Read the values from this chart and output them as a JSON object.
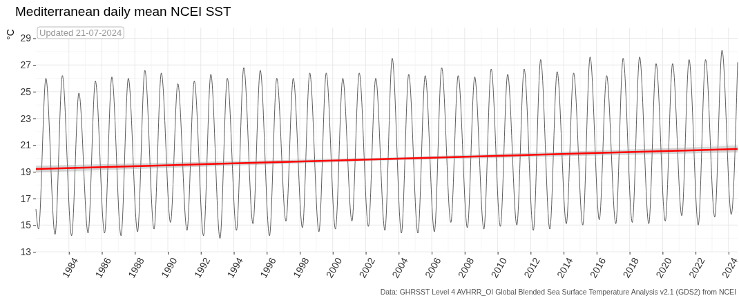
{
  "chart_data": {
    "type": "line",
    "title": "Mediterranean daily mean NCEI SST",
    "ylabel": "°C",
    "annotations": [
      "Updated 21-07-2024",
      "Data: GHRSST Level 4 AVHRR_OI Global Blended Sea Surface Temperature Analysis v2.1 (GDS2) from NCEI"
    ],
    "xlim": [
      "1982-01-01",
      "2024-07-20"
    ],
    "ylim": [
      13,
      29.8
    ],
    "xticks": [
      "1984",
      "1986",
      "1988",
      "1990",
      "1992",
      "1994",
      "1996",
      "1998",
      "2000",
      "2002",
      "2004",
      "2006",
      "2008",
      "2010",
      "2012",
      "2014",
      "2016",
      "2018",
      "2020",
      "2022",
      "2024"
    ],
    "yticks": [
      13,
      15,
      17,
      19,
      21,
      23,
      25,
      27,
      29
    ],
    "grid": true,
    "series": [
      {
        "color": "#333333",
        "x": [
          "1982-01-01",
          "1982-03-01",
          "1982-08-10",
          "1983-03-01",
          "1983-08-10",
          "1984-03-01",
          "1984-08-10",
          "1985-03-01",
          "1985-08-10",
          "1986-03-01",
          "1986-08-10",
          "1987-03-01",
          "1987-08-10",
          "1988-03-01",
          "1988-08-10",
          "1989-03-01",
          "1989-08-10",
          "1990-03-01",
          "1990-08-10",
          "1991-03-01",
          "1991-08-10",
          "1992-03-01",
          "1992-08-10",
          "1993-03-01",
          "1993-08-10",
          "1994-03-01",
          "1994-08-10",
          "1995-03-01",
          "1995-08-10",
          "1996-03-01",
          "1996-08-10",
          "1997-03-01",
          "1997-08-10",
          "1998-03-01",
          "1998-08-10",
          "1999-03-01",
          "1999-08-10",
          "2000-03-01",
          "2000-08-10",
          "2001-03-01",
          "2001-08-10",
          "2002-03-01",
          "2002-08-10",
          "2003-03-01",
          "2003-08-10",
          "2004-03-01",
          "2004-08-10",
          "2005-03-01",
          "2005-08-10",
          "2006-03-01",
          "2006-08-10",
          "2007-03-01",
          "2007-08-10",
          "2008-03-01",
          "2008-08-10",
          "2009-03-01",
          "2009-08-10",
          "2010-03-01",
          "2010-08-10",
          "2011-03-01",
          "2011-08-10",
          "2012-03-01",
          "2012-08-10",
          "2013-03-01",
          "2013-08-10",
          "2014-03-01",
          "2014-08-10",
          "2015-03-01",
          "2015-08-10",
          "2016-03-01",
          "2016-08-10",
          "2017-03-01",
          "2017-08-10",
          "2018-03-01",
          "2018-08-10",
          "2019-03-01",
          "2019-08-10",
          "2020-03-01",
          "2020-08-10",
          "2021-03-01",
          "2021-08-10",
          "2022-03-01",
          "2022-08-10",
          "2023-03-01",
          "2023-08-10",
          "2024-03-01",
          "2024-07-20"
        ],
        "values": [
          16.2,
          14.7,
          26.0,
          14.3,
          26.2,
          14.2,
          24.9,
          14.4,
          25.8,
          14.4,
          26.1,
          14.2,
          26.0,
          14.5,
          26.6,
          14.7,
          26.4,
          15.2,
          25.6,
          14.6,
          25.8,
          14.2,
          26.3,
          14.0,
          26.0,
          14.6,
          26.8,
          15.1,
          26.6,
          14.2,
          26.0,
          15.3,
          26.0,
          14.8,
          26.4,
          14.5,
          26.4,
          14.7,
          26.0,
          15.3,
          26.4,
          14.9,
          26.0,
          14.6,
          27.5,
          14.4,
          26.3,
          14.4,
          26.2,
          14.5,
          26.8,
          15.2,
          26.2,
          14.8,
          26.1,
          14.7,
          26.7,
          14.9,
          26.3,
          15.0,
          26.7,
          14.6,
          27.4,
          14.7,
          26.5,
          15.1,
          26.4,
          15.0,
          27.6,
          15.4,
          26.2,
          15.1,
          27.5,
          15.2,
          27.6,
          15.1,
          27.1,
          15.3,
          27.1,
          15.7,
          27.4,
          15.0,
          27.4,
          15.6,
          28.1,
          15.8,
          27.2
        ]
      },
      {
        "color": "#ff0000",
        "x": [
          "1982-01-01",
          "2003-04-10",
          "2024-07-20"
        ],
        "values": [
          19.2,
          19.95,
          20.7
        ],
        "lower": [
          18.95,
          19.85,
          20.45
        ],
        "upper": [
          19.45,
          20.05,
          20.95
        ]
      }
    ]
  }
}
